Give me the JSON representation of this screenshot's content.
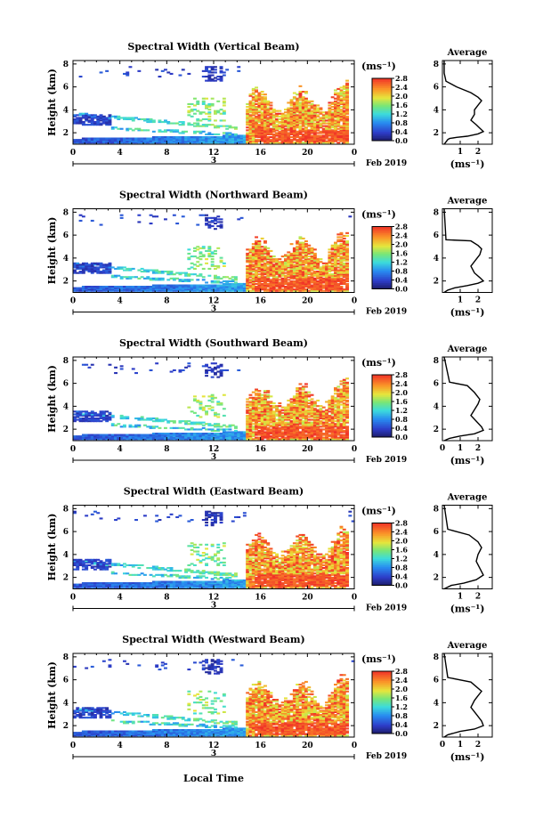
{
  "figure": {
    "xlabel": "Local Time",
    "date_label": "Feb 2019",
    "day_marker": "3",
    "colorbar_unit": "(ms⁻¹)",
    "colorbar_ticks": [
      "0.0",
      "0.4",
      "0.8",
      "1.2",
      "1.6",
      "2.0",
      "2.4",
      "2.8"
    ],
    "avg_title": "Average"
  },
  "chart_data": [
    {
      "type": "heatmap",
      "title": "Spectral Width (Vertical Beam)",
      "ylabel": "Height (km)",
      "x_ticks": [
        "0",
        "4",
        "8",
        "12",
        "16",
        "20",
        "0"
      ],
      "y_ticks": [
        "2",
        "4",
        "6",
        "8"
      ],
      "xlim": [
        0,
        24
      ],
      "ylim": [
        1,
        8.3
      ],
      "colorbar_range": [
        0,
        2.9
      ]
    },
    {
      "type": "heatmap",
      "title": "Spectral Width (Northward Beam)",
      "ylabel": "Height (km)",
      "x_ticks": [
        "0",
        "4",
        "8",
        "12",
        "16",
        "20",
        "0"
      ],
      "y_ticks": [
        "2",
        "4",
        "6",
        "8"
      ],
      "xlim": [
        0,
        24
      ],
      "ylim": [
        1,
        8.3
      ],
      "colorbar_range": [
        0,
        2.9
      ]
    },
    {
      "type": "heatmap",
      "title": "Spectral Width (Southward Beam)",
      "ylabel": "Height (km)",
      "x_ticks": [
        "0",
        "4",
        "8",
        "12",
        "16",
        "20",
        "0"
      ],
      "y_ticks": [
        "2",
        "4",
        "6",
        "8"
      ],
      "xlim": [
        0,
        24
      ],
      "ylim": [
        1,
        8.3
      ],
      "colorbar_range": [
        0,
        2.9
      ]
    },
    {
      "type": "heatmap",
      "title": "Spectral Width (Eastward Beam)",
      "ylabel": "Height (km)",
      "x_ticks": [
        "0",
        "4",
        "8",
        "12",
        "16",
        "20",
        "0"
      ],
      "y_ticks": [
        "2",
        "4",
        "6",
        "8"
      ],
      "xlim": [
        0,
        24
      ],
      "ylim": [
        1,
        8.3
      ],
      "colorbar_range": [
        0,
        2.9
      ]
    },
    {
      "type": "heatmap",
      "title": "Spectral Width (Westward Beam)",
      "ylabel": "Height (km)",
      "x_ticks": [
        "0",
        "4",
        "8",
        "12",
        "16",
        "20",
        "0"
      ],
      "y_ticks": [
        "2",
        "4",
        "6",
        "8"
      ],
      "xlim": [
        0,
        24
      ],
      "ylim": [
        1,
        8.3
      ],
      "colorbar_range": [
        0,
        2.9
      ]
    },
    {
      "type": "line",
      "title": "Average",
      "xlabel": "(ms⁻¹)",
      "x_ticks": [
        "1",
        "2"
      ],
      "y_ticks": [
        "2",
        "4",
        "6",
        "8"
      ],
      "xlim": [
        0,
        2.8
      ],
      "ylim": [
        1,
        8.3
      ],
      "x": [
        0.1,
        0.1,
        0.2,
        0.8,
        1.6,
        2.0,
        2.2,
        2.0,
        1.8,
        1.8,
        1.6,
        1.9,
        2.1,
        2.3,
        2.0,
        1.4,
        0.8,
        0.4,
        0.3,
        0.2,
        0.1
      ],
      "y": [
        8.3,
        7.2,
        6.5,
        6.0,
        5.5,
        5.1,
        4.8,
        4.4,
        4.0,
        3.6,
        3.1,
        2.7,
        2.4,
        2.1,
        1.9,
        1.7,
        1.6,
        1.5,
        1.4,
        1.2,
        1.0
      ]
    },
    {
      "type": "line",
      "title": "Average",
      "xlabel": "(ms⁻¹)",
      "x_ticks": [
        "1",
        "2"
      ],
      "y_ticks": [
        "2",
        "4",
        "6",
        "8"
      ],
      "xlim": [
        0,
        2.8
      ],
      "ylim": [
        1,
        8.3
      ],
      "x": [
        0.1,
        0.2,
        1.6,
        2.0,
        2.2,
        2.1,
        1.9,
        1.6,
        1.8,
        2.1,
        2.3,
        2.0,
        1.4,
        0.7,
        0.3,
        0.1
      ],
      "y": [
        8.3,
        5.6,
        5.5,
        5.1,
        4.8,
        4.3,
        3.9,
        3.3,
        2.7,
        2.3,
        2.0,
        1.8,
        1.6,
        1.4,
        1.2,
        1.0
      ]
    },
    {
      "type": "line",
      "title": "Average",
      "xlabel": "(ms⁻¹)",
      "x_ticks": [
        "0",
        "1",
        "2"
      ],
      "y_ticks": [
        "2",
        "4",
        "6",
        "8"
      ],
      "xlim": [
        0,
        2.8
      ],
      "ylim": [
        1,
        8.3
      ],
      "x": [
        0.1,
        0.4,
        1.4,
        1.8,
        2.1,
        2.0,
        1.8,
        1.6,
        1.9,
        2.2,
        2.3,
        1.8,
        1.0,
        0.4,
        0.1
      ],
      "y": [
        8.3,
        6.1,
        5.8,
        5.2,
        4.6,
        4.2,
        3.7,
        3.2,
        2.7,
        2.2,
        1.9,
        1.6,
        1.4,
        1.2,
        1.0
      ]
    },
    {
      "type": "line",
      "title": "Average",
      "xlabel": "(ms⁻¹)",
      "x_ticks": [
        "1",
        "2"
      ],
      "y_ticks": [
        "2",
        "4",
        "6",
        "8"
      ],
      "xlim": [
        0,
        2.8
      ],
      "ylim": [
        1,
        8.3
      ],
      "x": [
        0.1,
        0.3,
        1.5,
        2.0,
        2.2,
        2.0,
        1.9,
        2.1,
        2.3,
        1.9,
        1.2,
        0.5,
        0.1
      ],
      "y": [
        8.3,
        6.2,
        5.7,
        5.1,
        4.6,
        4.0,
        3.4,
        2.8,
        2.2,
        1.8,
        1.5,
        1.3,
        1.0
      ]
    },
    {
      "type": "line",
      "title": "Average",
      "xlabel": "(ms⁻¹)",
      "x_ticks": [
        "0",
        "1",
        "2"
      ],
      "y_ticks": [
        "2",
        "4",
        "6",
        "8"
      ],
      "xlim": [
        0,
        2.8
      ],
      "ylim": [
        1,
        8.3
      ],
      "x": [
        0.1,
        0.3,
        1.6,
        2.2,
        2.0,
        1.8,
        1.6,
        1.9,
        2.2,
        2.3,
        1.8,
        1.0,
        0.3,
        0.1
      ],
      "y": [
        8.3,
        6.2,
        5.8,
        5.0,
        4.6,
        4.2,
        3.6,
        3.0,
        2.4,
        2.0,
        1.7,
        1.5,
        1.2,
        1.0
      ]
    }
  ]
}
